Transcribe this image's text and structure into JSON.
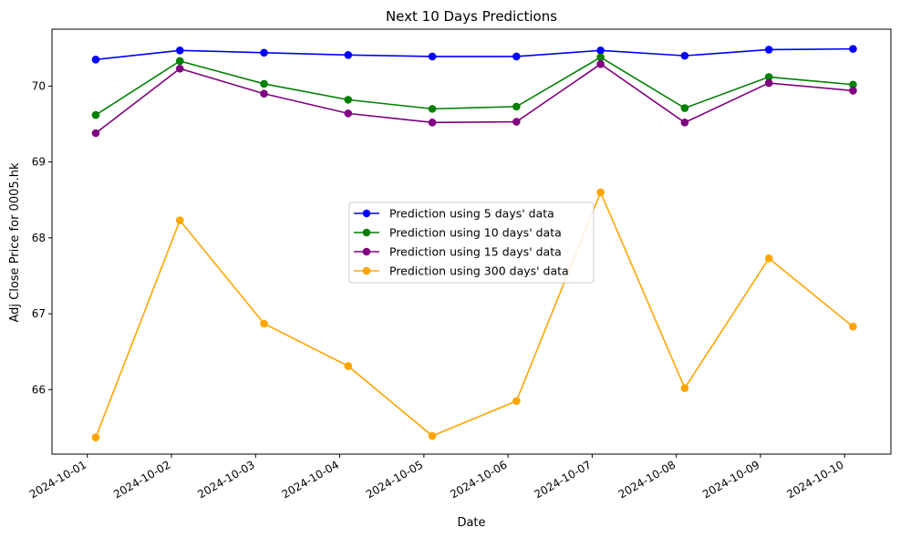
{
  "chart_data": {
    "type": "line",
    "title": "Next 10 Days Predictions",
    "xlabel": "Date",
    "ylabel": "Adj Close Price for 0005.hk",
    "x": [
      "2024-10-01",
      "2024-10-02",
      "2024-10-03",
      "2024-10-04",
      "2024-10-05",
      "2024-10-06",
      "2024-10-07",
      "2024-10-08",
      "2024-10-09",
      "2024-10-10"
    ],
    "x_ticks": [
      "2024-10-01",
      "2024-10-02",
      "2024-10-03",
      "2024-10-04",
      "2024-10-05",
      "2024-10-06",
      "2024-10-07",
      "2024-10-08",
      "2024-10-09",
      "2024-10-10"
    ],
    "x_offset_days": 0.1,
    "y_ticks": [
      66,
      67,
      68,
      69,
      70
    ],
    "ylim": [
      65.15,
      70.75
    ],
    "grid": false,
    "legend_position": "center",
    "series": [
      {
        "name": "Prediction using 5 days' data",
        "color": "#0000ff",
        "values": [
          70.35,
          70.47,
          70.44,
          70.41,
          70.39,
          70.39,
          70.47,
          70.4,
          70.48,
          70.49
        ]
      },
      {
        "name": "Prediction using 10 days' data",
        "color": "#008000",
        "values": [
          69.62,
          70.33,
          70.03,
          69.82,
          69.7,
          69.73,
          70.38,
          69.71,
          70.12,
          70.02
        ]
      },
      {
        "name": "Prediction using 15 days' data",
        "color": "#800080",
        "values": [
          69.38,
          70.23,
          69.9,
          69.64,
          69.52,
          69.53,
          70.29,
          69.52,
          70.04,
          69.94
        ]
      },
      {
        "name": "Prediction using 300 days' data",
        "color": "#ffa500",
        "values": [
          65.37,
          68.23,
          66.87,
          66.31,
          65.39,
          65.85,
          68.6,
          66.02,
          67.73,
          66.83
        ]
      }
    ]
  }
}
